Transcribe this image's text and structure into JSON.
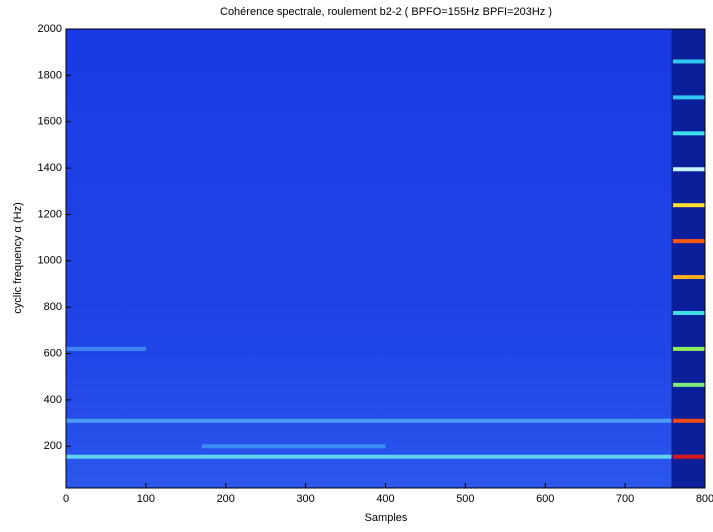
{
  "chart_data": {
    "type": "heatmap",
    "title": "Cohérence spectrale, roulement b2-2 ( BPFO=155Hz  BPFI=203Hz )",
    "xlabel": "Samples",
    "ylabel": "cyclic frequency α (Hz)",
    "xlim": [
      0,
      800
    ],
    "ylim": [
      20,
      2000
    ],
    "xticks": [
      0,
      100,
      200,
      300,
      400,
      500,
      600,
      700,
      800
    ],
    "yticks": [
      200,
      400,
      600,
      800,
      1000,
      1200,
      1400,
      1600,
      1800,
      2000
    ],
    "background_color": "#1d3fe6",
    "dark_region": {
      "x": [
        758,
        800
      ],
      "color": "#0b1f9a"
    },
    "features": [
      {
        "y": 155,
        "x": [
          0,
          758
        ],
        "color": "#5fd3f0"
      },
      {
        "y": 200,
        "x": [
          170,
          400
        ],
        "color": "#3f8cf5"
      },
      {
        "y": 310,
        "x": [
          0,
          758
        ],
        "color": "#4a9cf2"
      },
      {
        "y": 620,
        "x": [
          0,
          100
        ],
        "color": "#3f86ef"
      },
      {
        "y": 155,
        "x": [
          760,
          800
        ],
        "color": "#d81818"
      },
      {
        "y": 310,
        "x": [
          760,
          800
        ],
        "color": "#f04a1a"
      },
      {
        "y": 465,
        "x": [
          760,
          800
        ],
        "color": "#7cf07a"
      },
      {
        "y": 620,
        "x": [
          760,
          800
        ],
        "color": "#8ef05a"
      },
      {
        "y": 775,
        "x": [
          760,
          800
        ],
        "color": "#3ee0e8"
      },
      {
        "y": 930,
        "x": [
          760,
          800
        ],
        "color": "#ffb020"
      },
      {
        "y": 1085,
        "x": [
          760,
          800
        ],
        "color": "#ff5a10"
      },
      {
        "y": 1240,
        "x": [
          760,
          800
        ],
        "color": "#ffe030"
      },
      {
        "y": 1395,
        "x": [
          760,
          800
        ],
        "color": "#c8f8ff"
      },
      {
        "y": 1550,
        "x": [
          760,
          800
        ],
        "color": "#40e0f0"
      },
      {
        "y": 1705,
        "x": [
          760,
          800
        ],
        "color": "#30c8f0"
      },
      {
        "y": 1860,
        "x": [
          760,
          800
        ],
        "color": "#30c8f0"
      }
    ]
  }
}
